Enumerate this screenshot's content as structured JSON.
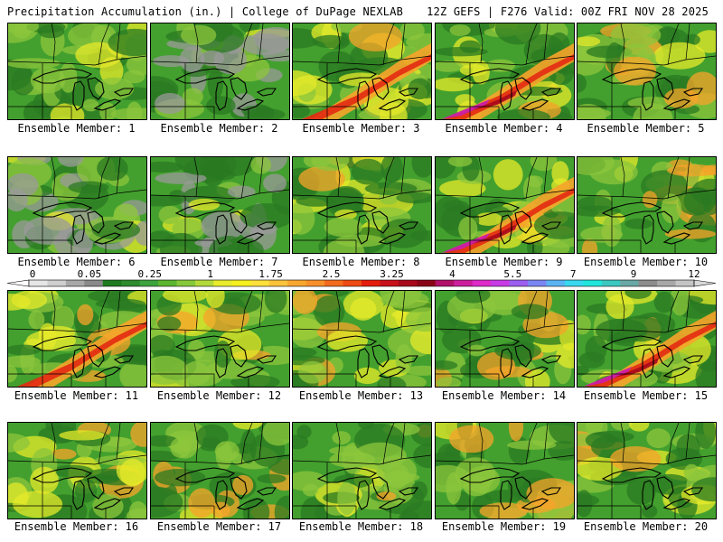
{
  "header": {
    "left": "Precipitation Accumulation (in.) | College of DuPage NEXLAB",
    "right": "12Z GEFS | F276 Valid: 00Z FRI NOV 28 2025"
  },
  "member_label_prefix": "Ensemble Member:",
  "members": [
    {
      "id": "1",
      "label": "Ensemble Member: 1",
      "intensity": 0.45
    },
    {
      "id": "2",
      "label": "Ensemble Member: 2",
      "intensity": 0.4
    },
    {
      "id": "3",
      "label": "Ensemble Member: 3",
      "intensity": 0.85
    },
    {
      "id": "4",
      "label": "Ensemble Member: 4",
      "intensity": 1.0
    },
    {
      "id": "5",
      "label": "Ensemble Member: 5",
      "intensity": 0.6
    },
    {
      "id": "6",
      "label": "Ensemble Member: 6",
      "intensity": 0.38
    },
    {
      "id": "7",
      "label": "Ensemble Member: 7",
      "intensity": 0.3
    },
    {
      "id": "8",
      "label": "Ensemble Member: 8",
      "intensity": 0.7
    },
    {
      "id": "9",
      "label": "Ensemble Member: 9",
      "intensity": 1.0
    },
    {
      "id": "10",
      "label": "Ensemble Member: 10",
      "intensity": 0.55
    },
    {
      "id": "11",
      "label": "Ensemble Member: 11",
      "intensity": 0.9
    },
    {
      "id": "12",
      "label": "Ensemble Member: 12",
      "intensity": 0.65
    },
    {
      "id": "13",
      "label": "Ensemble Member: 13",
      "intensity": 0.65
    },
    {
      "id": "14",
      "label": "Ensemble Member: 14",
      "intensity": 0.75
    },
    {
      "id": "15",
      "label": "Ensemble Member: 15",
      "intensity": 0.95
    },
    {
      "id": "16",
      "label": "Ensemble Member: 16",
      "intensity": 0.55
    },
    {
      "id": "17",
      "label": "Ensemble Member: 17",
      "intensity": 0.65
    },
    {
      "id": "18",
      "label": "Ensemble Member: 18",
      "intensity": 0.75
    },
    {
      "id": "19",
      "label": "Ensemble Member: 19",
      "intensity": 0.55
    },
    {
      "id": "20",
      "label": "Ensemble Member: 20",
      "intensity": 0.7
    }
  ],
  "colorbar": {
    "tick_labels": [
      "0",
      "0.05",
      "0.25",
      "1",
      "1.75",
      "2.5",
      "3.25",
      "4",
      "5.5",
      "7",
      "9",
      "12"
    ],
    "colors": [
      "#e6e6e6",
      "#cfcfcf",
      "#a8a8a8",
      "#8a8a8a",
      "#1e7a1e",
      "#2e8b2e",
      "#3da33d",
      "#5cb52f",
      "#86c83a",
      "#b4d93a",
      "#e8ec2c",
      "#f5f01e",
      "#fde03a",
      "#fbc33a",
      "#f9a62e",
      "#f7902a",
      "#f36b1e",
      "#ee4a14",
      "#e41c0c",
      "#c8101a",
      "#a8081c",
      "#8a0418",
      "#b0106a",
      "#cc1e9c",
      "#de2cc8",
      "#c83ce6",
      "#9c5ef0",
      "#7a86f2",
      "#5ab4f2",
      "#38d8ee",
      "#22e6dc",
      "#3cc8c0",
      "#6aa8a6",
      "#8c8c8c",
      "#a8a8a8",
      "#c4c4c4"
    ]
  },
  "map_colors": {
    "water": "#2f8f2f",
    "land_base": "#43a02e",
    "green_dark": "#2a7a22",
    "green_light": "#8cc63c",
    "yellow": "#e6ea2a",
    "orange": "#f7a42a",
    "red": "#e32a12",
    "dark_red": "#a8081c",
    "magenta": "#cc1ea8",
    "gray": "#9a9a9a",
    "boundary": "#000000"
  }
}
